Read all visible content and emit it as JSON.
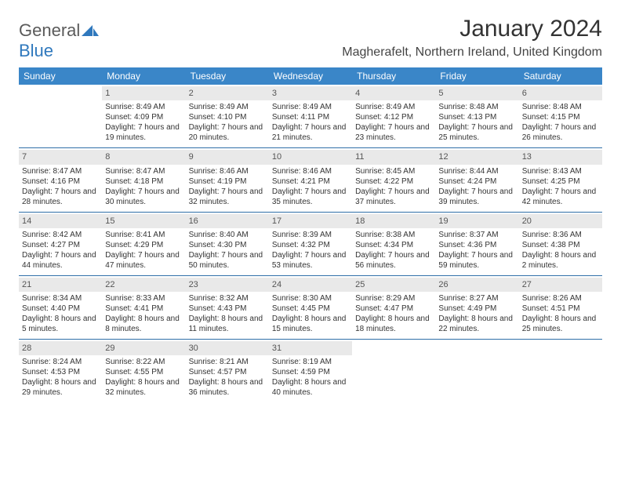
{
  "logo": {
    "part1": "General",
    "part2": "Blue"
  },
  "title": "January 2024",
  "location": "Magherafelt, Northern Ireland, United Kingdom",
  "colors": {
    "header_bg": "#3a86c8",
    "header_fg": "#ffffff",
    "daynum_bg": "#e9e9e9",
    "row_border": "#2f6fa8",
    "logo_gray": "#5a5a5a",
    "logo_blue": "#2f78bd"
  },
  "week_days": [
    "Sunday",
    "Monday",
    "Tuesday",
    "Wednesday",
    "Thursday",
    "Friday",
    "Saturday"
  ],
  "weeks": [
    [
      {
        "day": "",
        "sunrise": "",
        "sunset": "",
        "daylight": ""
      },
      {
        "day": "1",
        "sunrise": "Sunrise: 8:49 AM",
        "sunset": "Sunset: 4:09 PM",
        "daylight": "Daylight: 7 hours and 19 minutes."
      },
      {
        "day": "2",
        "sunrise": "Sunrise: 8:49 AM",
        "sunset": "Sunset: 4:10 PM",
        "daylight": "Daylight: 7 hours and 20 minutes."
      },
      {
        "day": "3",
        "sunrise": "Sunrise: 8:49 AM",
        "sunset": "Sunset: 4:11 PM",
        "daylight": "Daylight: 7 hours and 21 minutes."
      },
      {
        "day": "4",
        "sunrise": "Sunrise: 8:49 AM",
        "sunset": "Sunset: 4:12 PM",
        "daylight": "Daylight: 7 hours and 23 minutes."
      },
      {
        "day": "5",
        "sunrise": "Sunrise: 8:48 AM",
        "sunset": "Sunset: 4:13 PM",
        "daylight": "Daylight: 7 hours and 25 minutes."
      },
      {
        "day": "6",
        "sunrise": "Sunrise: 8:48 AM",
        "sunset": "Sunset: 4:15 PM",
        "daylight": "Daylight: 7 hours and 26 minutes."
      }
    ],
    [
      {
        "day": "7",
        "sunrise": "Sunrise: 8:47 AM",
        "sunset": "Sunset: 4:16 PM",
        "daylight": "Daylight: 7 hours and 28 minutes."
      },
      {
        "day": "8",
        "sunrise": "Sunrise: 8:47 AM",
        "sunset": "Sunset: 4:18 PM",
        "daylight": "Daylight: 7 hours and 30 minutes."
      },
      {
        "day": "9",
        "sunrise": "Sunrise: 8:46 AM",
        "sunset": "Sunset: 4:19 PM",
        "daylight": "Daylight: 7 hours and 32 minutes."
      },
      {
        "day": "10",
        "sunrise": "Sunrise: 8:46 AM",
        "sunset": "Sunset: 4:21 PM",
        "daylight": "Daylight: 7 hours and 35 minutes."
      },
      {
        "day": "11",
        "sunrise": "Sunrise: 8:45 AM",
        "sunset": "Sunset: 4:22 PM",
        "daylight": "Daylight: 7 hours and 37 minutes."
      },
      {
        "day": "12",
        "sunrise": "Sunrise: 8:44 AM",
        "sunset": "Sunset: 4:24 PM",
        "daylight": "Daylight: 7 hours and 39 minutes."
      },
      {
        "day": "13",
        "sunrise": "Sunrise: 8:43 AM",
        "sunset": "Sunset: 4:25 PM",
        "daylight": "Daylight: 7 hours and 42 minutes."
      }
    ],
    [
      {
        "day": "14",
        "sunrise": "Sunrise: 8:42 AM",
        "sunset": "Sunset: 4:27 PM",
        "daylight": "Daylight: 7 hours and 44 minutes."
      },
      {
        "day": "15",
        "sunrise": "Sunrise: 8:41 AM",
        "sunset": "Sunset: 4:29 PM",
        "daylight": "Daylight: 7 hours and 47 minutes."
      },
      {
        "day": "16",
        "sunrise": "Sunrise: 8:40 AM",
        "sunset": "Sunset: 4:30 PM",
        "daylight": "Daylight: 7 hours and 50 minutes."
      },
      {
        "day": "17",
        "sunrise": "Sunrise: 8:39 AM",
        "sunset": "Sunset: 4:32 PM",
        "daylight": "Daylight: 7 hours and 53 minutes."
      },
      {
        "day": "18",
        "sunrise": "Sunrise: 8:38 AM",
        "sunset": "Sunset: 4:34 PM",
        "daylight": "Daylight: 7 hours and 56 minutes."
      },
      {
        "day": "19",
        "sunrise": "Sunrise: 8:37 AM",
        "sunset": "Sunset: 4:36 PM",
        "daylight": "Daylight: 7 hours and 59 minutes."
      },
      {
        "day": "20",
        "sunrise": "Sunrise: 8:36 AM",
        "sunset": "Sunset: 4:38 PM",
        "daylight": "Daylight: 8 hours and 2 minutes."
      }
    ],
    [
      {
        "day": "21",
        "sunrise": "Sunrise: 8:34 AM",
        "sunset": "Sunset: 4:40 PM",
        "daylight": "Daylight: 8 hours and 5 minutes."
      },
      {
        "day": "22",
        "sunrise": "Sunrise: 8:33 AM",
        "sunset": "Sunset: 4:41 PM",
        "daylight": "Daylight: 8 hours and 8 minutes."
      },
      {
        "day": "23",
        "sunrise": "Sunrise: 8:32 AM",
        "sunset": "Sunset: 4:43 PM",
        "daylight": "Daylight: 8 hours and 11 minutes."
      },
      {
        "day": "24",
        "sunrise": "Sunrise: 8:30 AM",
        "sunset": "Sunset: 4:45 PM",
        "daylight": "Daylight: 8 hours and 15 minutes."
      },
      {
        "day": "25",
        "sunrise": "Sunrise: 8:29 AM",
        "sunset": "Sunset: 4:47 PM",
        "daylight": "Daylight: 8 hours and 18 minutes."
      },
      {
        "day": "26",
        "sunrise": "Sunrise: 8:27 AM",
        "sunset": "Sunset: 4:49 PM",
        "daylight": "Daylight: 8 hours and 22 minutes."
      },
      {
        "day": "27",
        "sunrise": "Sunrise: 8:26 AM",
        "sunset": "Sunset: 4:51 PM",
        "daylight": "Daylight: 8 hours and 25 minutes."
      }
    ],
    [
      {
        "day": "28",
        "sunrise": "Sunrise: 8:24 AM",
        "sunset": "Sunset: 4:53 PM",
        "daylight": "Daylight: 8 hours and 29 minutes."
      },
      {
        "day": "29",
        "sunrise": "Sunrise: 8:22 AM",
        "sunset": "Sunset: 4:55 PM",
        "daylight": "Daylight: 8 hours and 32 minutes."
      },
      {
        "day": "30",
        "sunrise": "Sunrise: 8:21 AM",
        "sunset": "Sunset: 4:57 PM",
        "daylight": "Daylight: 8 hours and 36 minutes."
      },
      {
        "day": "31",
        "sunrise": "Sunrise: 8:19 AM",
        "sunset": "Sunset: 4:59 PM",
        "daylight": "Daylight: 8 hours and 40 minutes."
      },
      {
        "day": "",
        "sunrise": "",
        "sunset": "",
        "daylight": ""
      },
      {
        "day": "",
        "sunrise": "",
        "sunset": "",
        "daylight": ""
      },
      {
        "day": "",
        "sunrise": "",
        "sunset": "",
        "daylight": ""
      }
    ]
  ]
}
